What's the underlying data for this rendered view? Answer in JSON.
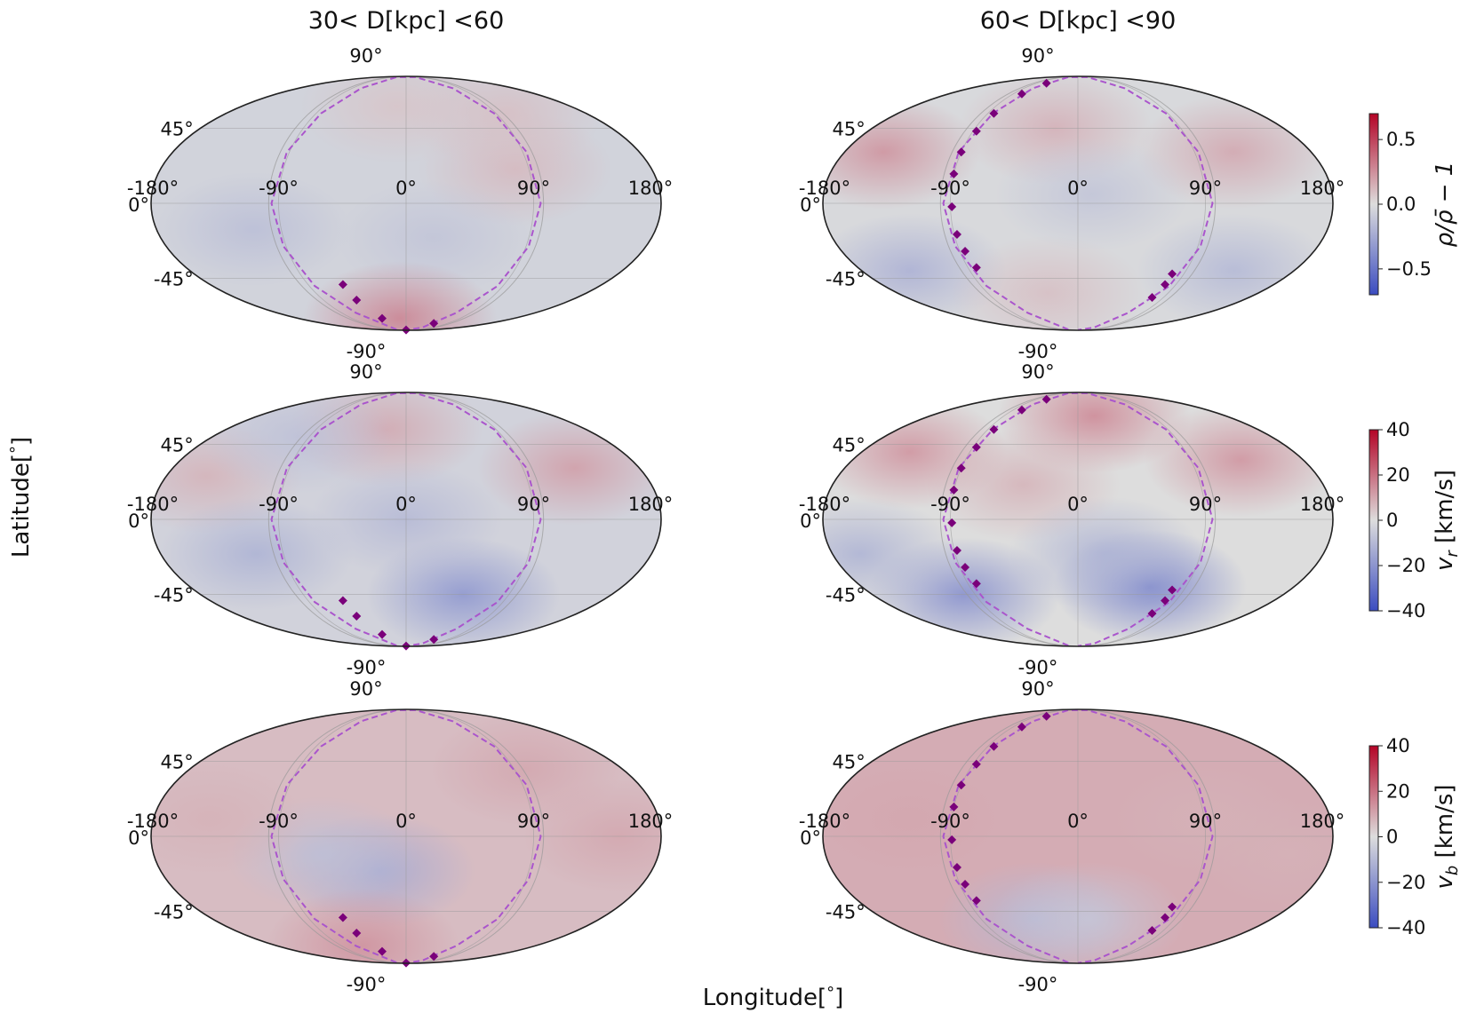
{
  "figure": {
    "xlabel": "Longitude[$^{\\circ}$]",
    "xlabel_text": "Longitude[",
    "xlabel_unit": "°",
    "xlabel_close": "]",
    "ylabel_text": "Latitude[",
    "ylabel_unit": "°",
    "ylabel_close": "]"
  },
  "colors": {
    "cmap_low": "#3b4cc0",
    "cmap_mid": "#dddddd",
    "cmap_high": "#b40426",
    "track": "#aa55cc",
    "marker": "#7a007a",
    "outline": "#222222",
    "grid": "#999999"
  },
  "chart_data": [
    {
      "type": "heatmap",
      "projection": "mollweide",
      "title": "30< D[kpc] <60",
      "row": 0,
      "col": 0,
      "quantity": "rho/rho_bar - 1",
      "lon_ticks": [
        "-180°",
        "-90°",
        "0°",
        "90°",
        "180°"
      ],
      "lat_ticks": [
        "90°",
        "45°",
        "0°",
        "-45°",
        "-90°"
      ],
      "base": -0.05,
      "blobs": [
        {
          "lon": 80,
          "lat": 20,
          "value": 0.12
        },
        {
          "lon": -10,
          "lat": 60,
          "value": 0.08
        },
        {
          "lon": -110,
          "lat": -15,
          "value": -0.15
        },
        {
          "lon": 20,
          "lat": -20,
          "value": -0.12
        },
        {
          "lon": -10,
          "lat": -75,
          "value": 0.3
        },
        {
          "lon": 100,
          "lat": 55,
          "value": 0.1
        }
      ],
      "markers": [
        {
          "lon": -58,
          "lat": -49
        },
        {
          "lon": -54,
          "lat": -60
        },
        {
          "lon": -40,
          "lat": -75
        },
        {
          "lon": 0,
          "lat": -89
        },
        {
          "lon": 60,
          "lat": -80
        }
      ]
    },
    {
      "type": "heatmap",
      "projection": "mollweide",
      "title": "60< D[kpc] <90",
      "row": 0,
      "col": 1,
      "quantity": "rho/rho_bar - 1",
      "lon_ticks": [
        "-180°",
        "-90°",
        "0°",
        "90°",
        "180°"
      ],
      "lat_ticks": [
        "90°",
        "45°",
        "0°",
        "-45°",
        "-90°"
      ],
      "base": -0.02,
      "blobs": [
        {
          "lon": -150,
          "lat": 30,
          "value": 0.25
        },
        {
          "lon": -20,
          "lat": 45,
          "value": 0.15
        },
        {
          "lon": 120,
          "lat": 30,
          "value": 0.18
        },
        {
          "lon": 10,
          "lat": 5,
          "value": -0.12
        },
        {
          "lon": -140,
          "lat": -40,
          "value": -0.22
        },
        {
          "lon": 130,
          "lat": -40,
          "value": -0.18
        },
        {
          "lon": -30,
          "lat": -55,
          "value": 0.1
        }
      ],
      "markers": [
        {
          "lon": -68,
          "lat": 80
        },
        {
          "lon": -78,
          "lat": 70
        },
        {
          "lon": -84,
          "lat": 55
        },
        {
          "lon": -87,
          "lat": 43
        },
        {
          "lon": -90,
          "lat": 30
        },
        {
          "lon": -90,
          "lat": 17
        },
        {
          "lon": -89,
          "lat": -2
        },
        {
          "lon": -88,
          "lat": -18
        },
        {
          "lon": -86,
          "lat": -28
        },
        {
          "lon": -83,
          "lat": -38
        },
        {
          "lon": 80,
          "lat": -42
        },
        {
          "lon": 80,
          "lat": -49
        },
        {
          "lon": 78,
          "lat": -58
        }
      ]
    },
    {
      "type": "heatmap",
      "projection": "mollweide",
      "title": "",
      "row": 1,
      "col": 0,
      "quantity": "v_r [km/s]",
      "lon_ticks": [
        "-180°",
        "-90°",
        "0°",
        "90°",
        "180°"
      ],
      "lat_ticks": [
        "90°",
        "45°",
        "0°",
        "-45°",
        "-90°"
      ],
      "base": -3,
      "blobs": [
        {
          "lon": 130,
          "lat": 30,
          "value": 12
        },
        {
          "lon": -20,
          "lat": 55,
          "value": 10
        },
        {
          "lon": -150,
          "lat": 25,
          "value": 8
        },
        {
          "lon": 50,
          "lat": -45,
          "value": -20
        },
        {
          "lon": -110,
          "lat": -20,
          "value": -12
        },
        {
          "lon": -100,
          "lat": 50,
          "value": -8
        },
        {
          "lon": 0,
          "lat": 0,
          "value": -10
        }
      ],
      "markers": [
        {
          "lon": -58,
          "lat": -49
        },
        {
          "lon": -54,
          "lat": -60
        },
        {
          "lon": -40,
          "lat": -75
        },
        {
          "lon": 0,
          "lat": -89
        },
        {
          "lon": 60,
          "lat": -80
        }
      ]
    },
    {
      "type": "heatmap",
      "projection": "mollweide",
      "title": "",
      "row": 1,
      "col": 1,
      "quantity": "v_r [km/s]",
      "lon_ticks": [
        "-180°",
        "-90°",
        "0°",
        "90°",
        "180°"
      ],
      "lat_ticks": [
        "90°",
        "45°",
        "0°",
        "-45°",
        "-90°"
      ],
      "base": 0,
      "blobs": [
        {
          "lon": -140,
          "lat": 40,
          "value": 14
        },
        {
          "lon": 20,
          "lat": 65,
          "value": 16
        },
        {
          "lon": 130,
          "lat": 35,
          "value": 14
        },
        {
          "lon": -40,
          "lat": 20,
          "value": 8
        },
        {
          "lon": -100,
          "lat": -45,
          "value": -22
        },
        {
          "lon": 60,
          "lat": -40,
          "value": -26
        },
        {
          "lon": 20,
          "lat": -20,
          "value": -12
        },
        {
          "lon": -160,
          "lat": -20,
          "value": -12
        }
      ],
      "markers": [
        {
          "lon": -68,
          "lat": 80
        },
        {
          "lon": -78,
          "lat": 70
        },
        {
          "lon": -84,
          "lat": 55
        },
        {
          "lon": -87,
          "lat": 43
        },
        {
          "lon": -90,
          "lat": 30
        },
        {
          "lon": -90,
          "lat": 17
        },
        {
          "lon": -89,
          "lat": -2
        },
        {
          "lon": -88,
          "lat": -18
        },
        {
          "lon": -86,
          "lat": -28
        },
        {
          "lon": -83,
          "lat": -38
        },
        {
          "lon": 80,
          "lat": -42
        },
        {
          "lon": 80,
          "lat": -49
        },
        {
          "lon": 78,
          "lat": -58
        }
      ]
    },
    {
      "type": "heatmap",
      "projection": "mollweide",
      "title": "",
      "row": 2,
      "col": 0,
      "quantity": "v_b [km/s]",
      "lon_ticks": [
        "-180°",
        "-90°",
        "0°",
        "90°",
        "180°"
      ],
      "lat_ticks": [
        "90°",
        "45°",
        "0°",
        "-45°",
        "-90°"
      ],
      "base": 6,
      "blobs": [
        {
          "lon": -20,
          "lat": -20,
          "value": -14
        },
        {
          "lon": -60,
          "lat": -10,
          "value": -8
        },
        {
          "lon": 100,
          "lat": 40,
          "value": 10
        },
        {
          "lon": -140,
          "lat": 10,
          "value": 8
        },
        {
          "lon": -60,
          "lat": -70,
          "value": 14
        },
        {
          "lon": 150,
          "lat": 0,
          "value": 10
        }
      ],
      "markers": [
        {
          "lon": -58,
          "lat": -49
        },
        {
          "lon": -54,
          "lat": -60
        },
        {
          "lon": -40,
          "lat": -75
        },
        {
          "lon": 0,
          "lat": -89
        },
        {
          "lon": 60,
          "lat": -80
        }
      ]
    },
    {
      "type": "heatmap",
      "projection": "mollweide",
      "title": "",
      "row": 2,
      "col": 1,
      "quantity": "v_b [km/s]",
      "lon_ticks": [
        "-180°",
        "-90°",
        "0°",
        "90°",
        "180°"
      ],
      "lat_ticks": [
        "90°",
        "45°",
        "0°",
        "-45°",
        "-90°"
      ],
      "base": 9,
      "blobs": [
        {
          "lon": -120,
          "lat": 10,
          "value": 10
        },
        {
          "lon": 90,
          "lat": 10,
          "value": 8
        },
        {
          "lon": -40,
          "lat": -50,
          "value": -10
        },
        {
          "lon": 10,
          "lat": -50,
          "value": -6
        },
        {
          "lon": 150,
          "lat": -10,
          "value": 8
        }
      ],
      "markers": [
        {
          "lon": -68,
          "lat": 80
        },
        {
          "lon": -78,
          "lat": 70
        },
        {
          "lon": -84,
          "lat": 55
        },
        {
          "lon": -87,
          "lat": 43
        },
        {
          "lon": -90,
          "lat": 30
        },
        {
          "lon": -90,
          "lat": 17
        },
        {
          "lon": -89,
          "lat": -2
        },
        {
          "lon": -88,
          "lat": -18
        },
        {
          "lon": -86,
          "lat": -28
        },
        {
          "lon": -83,
          "lat": -38
        },
        {
          "lon": 80,
          "lat": -42
        },
        {
          "lon": 80,
          "lat": -49
        },
        {
          "lon": 78,
          "lat": -58
        }
      ]
    }
  ],
  "colorbars": [
    {
      "row": 0,
      "label_main": "ρ/ρ̄ − 1",
      "min": -0.7,
      "max": 0.7,
      "ticks": [
        {
          "value": 0.5,
          "label": "0.5"
        },
        {
          "value": 0.0,
          "label": "0.0"
        },
        {
          "value": -0.5,
          "label": "−0.5"
        }
      ]
    },
    {
      "row": 1,
      "label_main": "v",
      "label_sub": "r",
      "label_unit": " [km/s]",
      "min": -40,
      "max": 40,
      "ticks": [
        {
          "value": 40,
          "label": "40"
        },
        {
          "value": 20,
          "label": "20"
        },
        {
          "value": 0,
          "label": "0"
        },
        {
          "value": -20,
          "label": "−20"
        },
        {
          "value": -40,
          "label": "−40"
        }
      ]
    },
    {
      "row": 2,
      "label_main": "v",
      "label_sub": "b",
      "label_unit": " [km/s]",
      "min": -40,
      "max": 40,
      "ticks": [
        {
          "value": 40,
          "label": "40"
        },
        {
          "value": 20,
          "label": "20"
        },
        {
          "value": 0,
          "label": "0"
        },
        {
          "value": -20,
          "label": "−20"
        },
        {
          "value": -40,
          "label": "−40"
        }
      ]
    }
  ]
}
